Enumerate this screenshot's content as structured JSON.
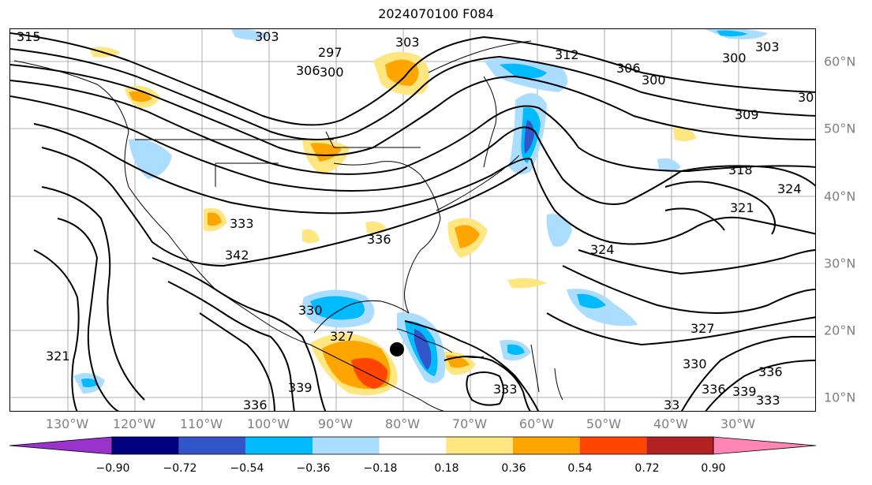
{
  "title": "2024070100 F084",
  "map": {
    "longitude_labels": [
      "130°W",
      "120°W",
      "110°W",
      "100°W",
      "90°W",
      "80°W",
      "70°W",
      "60°W",
      "50°W",
      "40°W",
      "30°W"
    ],
    "latitude_labels": [
      "60°N",
      "50°N",
      "40°N",
      "30°N",
      "20°N",
      "10°N"
    ],
    "contour_labels": [
      "315",
      "303",
      "303",
      "297",
      "300",
      "306",
      "312",
      "306",
      "300",
      "303",
      "300",
      "30",
      "309",
      "318",
      "324",
      "321",
      "324",
      "333",
      "342",
      "336",
      "330",
      "327",
      "330",
      "336",
      "339",
      "336",
      "333",
      "33",
      "336",
      "339",
      "333",
      "321",
      "327"
    ],
    "storm_marker": "tropical-system-center"
  },
  "colorbar": {
    "ticks": [
      "−0.90",
      "−0.72",
      "−0.54",
      "−0.36",
      "−0.18",
      "0.18",
      "0.36",
      "0.54",
      "0.72",
      "0.90"
    ],
    "colors": [
      "#9933cc",
      "#000080",
      "#3355cc",
      "#00bbff",
      "#aaddff",
      "#ffffff",
      "#ffe680",
      "#ffa500",
      "#ff4500",
      "#b22222",
      "#ff85b5"
    ]
  }
}
